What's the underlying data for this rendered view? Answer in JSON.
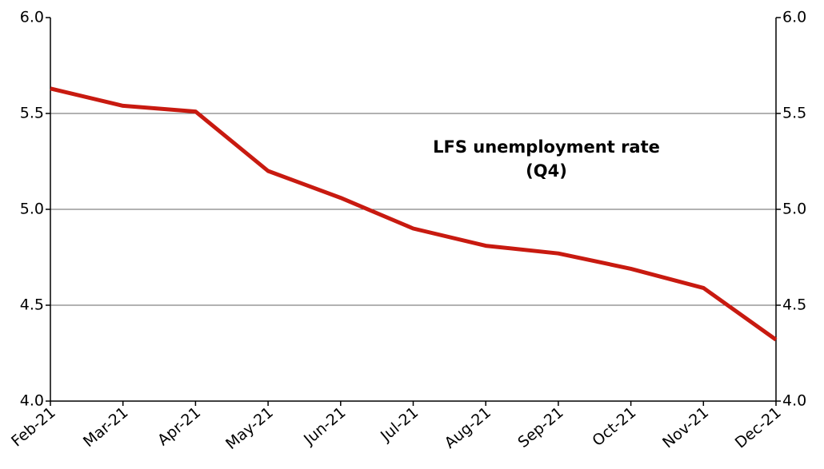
{
  "chart_data": {
    "type": "line",
    "annotation": [
      "LFS unemployment rate",
      "(Q4)"
    ],
    "categories": [
      "Feb-21",
      "Mar-21",
      "Apr-21",
      "May-21",
      "Jun-21",
      "Jul-21",
      "Aug-21",
      "Sep-21",
      "Oct-21",
      "Nov-21",
      "Dec-21"
    ],
    "series": [
      {
        "name": "LFS unemployment rate",
        "color": "#c81a10",
        "values": [
          5.63,
          5.54,
          5.51,
          5.2,
          5.06,
          4.9,
          4.81,
          4.77,
          4.69,
          4.59,
          4.32
        ]
      }
    ],
    "ylim": [
      4,
      6
    ],
    "yticks": [
      {
        "value": 4,
        "label": "4.0"
      },
      {
        "value": 4.5,
        "label": "4.5"
      },
      {
        "value": 5,
        "label": "5.0"
      },
      {
        "value": 5.5,
        "label": "5.5"
      },
      {
        "value": 6,
        "label": "6.0"
      }
    ],
    "y2lim": [
      4,
      6
    ],
    "y2ticks": [
      {
        "value": 4,
        "label": "4.0"
      },
      {
        "value": 4.5,
        "label": "4.5"
      },
      {
        "value": 5,
        "label": "5.0"
      },
      {
        "value": 5.5,
        "label": "5.5"
      },
      {
        "value": 6,
        "label": "6.0"
      }
    ],
    "grid": true
  }
}
